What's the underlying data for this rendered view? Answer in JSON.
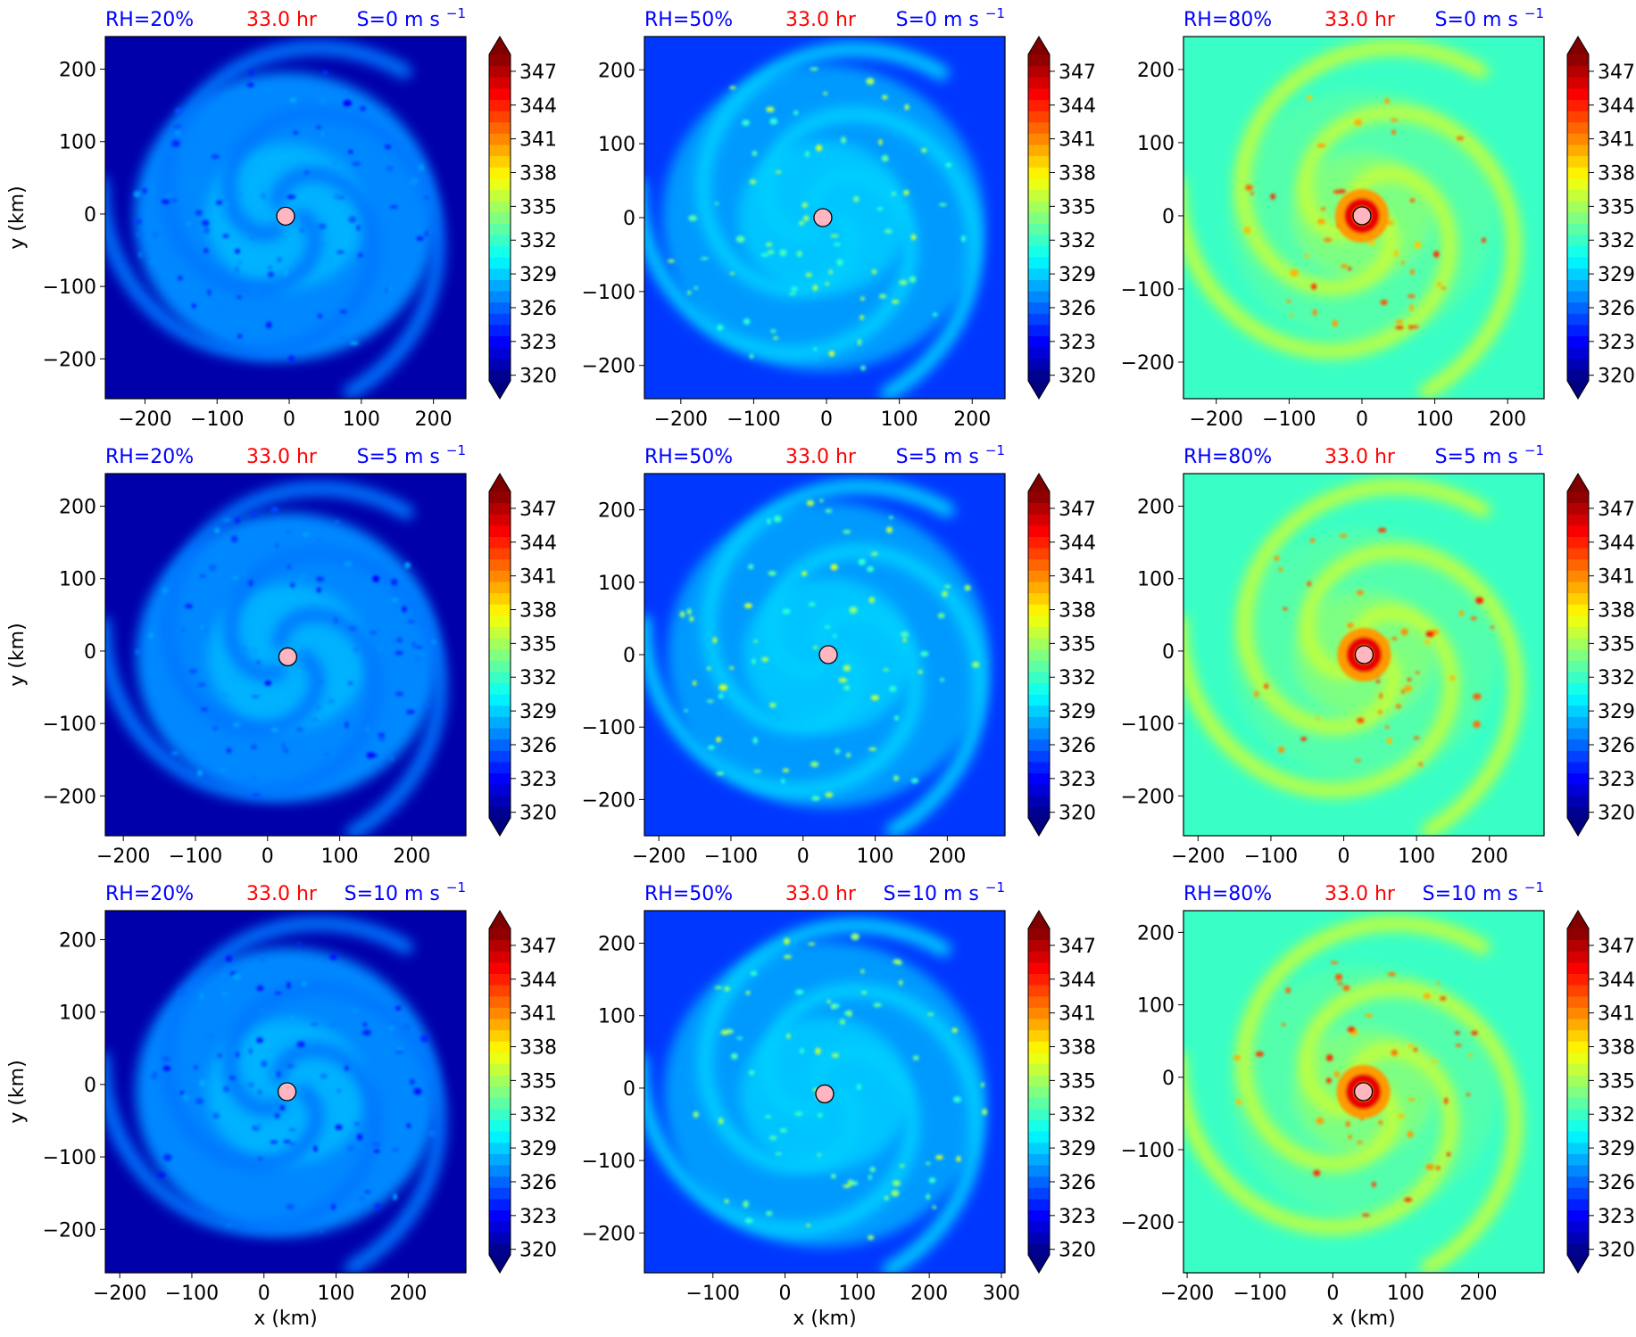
{
  "figure": {
    "colorbar_ticks": [
      "320",
      "323",
      "326",
      "329",
      "332",
      "335",
      "338",
      "341",
      "344",
      "347"
    ],
    "xlabel": "x (km)",
    "ylabel": "y (km)",
    "time_label": "33.0 hr",
    "colors": {
      "header_blue": "#0000ff",
      "header_red": "#ff0000",
      "center_marker": "#ffb6c1"
    }
  },
  "chart_data": [
    {
      "type": "heatmap",
      "rh_label": "RH=20%",
      "time_label": "33.0 hr",
      "shear_label": "S=0 m s",
      "shear_exp": "−1",
      "xlim": [
        -255,
        245
      ],
      "ylim": [
        -255,
        245
      ],
      "xticks": [
        "−200",
        "−100",
        "0",
        "100",
        "200"
      ],
      "yticks": [
        "200",
        "100",
        "0",
        "−100",
        "−200"
      ],
      "center": [
        -5,
        -3
      ],
      "regime": "dry",
      "colorbar": {
        "min": 320,
        "max": 349,
        "ticks": [
          320,
          323,
          326,
          329,
          332,
          335,
          338,
          341,
          344,
          347
        ]
      }
    },
    {
      "type": "heatmap",
      "rh_label": "RH=50%",
      "time_label": "33.0 hr",
      "shear_label": "S=0 m s",
      "shear_exp": "−1",
      "xlim": [
        -250,
        245
      ],
      "ylim": [
        -245,
        245
      ],
      "xticks": [
        "−200",
        "−100",
        "0",
        "100",
        "200"
      ],
      "yticks": [
        "200",
        "100",
        "0",
        "−100",
        "−200"
      ],
      "center": [
        -5,
        0
      ],
      "regime": "mid",
      "colorbar": {
        "min": 320,
        "max": 349,
        "ticks": [
          320,
          323,
          326,
          329,
          332,
          335,
          338,
          341,
          344,
          347
        ]
      }
    },
    {
      "type": "heatmap",
      "rh_label": "RH=80%",
      "time_label": "33.0 hr",
      "shear_label": "S=0 m s",
      "shear_exp": "−1",
      "xlim": [
        -245,
        250
      ],
      "ylim": [
        -250,
        245
      ],
      "xticks": [
        "−200",
        "−100",
        "0",
        "100",
        "200"
      ],
      "yticks": [
        "200",
        "100",
        "0",
        "−100",
        "−200"
      ],
      "center": [
        0,
        0
      ],
      "regime": "moist",
      "colorbar": {
        "min": 320,
        "max": 349,
        "ticks": [
          320,
          323,
          326,
          329,
          332,
          335,
          338,
          341,
          344,
          347
        ]
      }
    },
    {
      "type": "heatmap",
      "rh_label": "RH=20%",
      "time_label": "33.0 hr",
      "shear_label": "S=5 m s",
      "shear_exp": "−1",
      "xlim": [
        -225,
        275
      ],
      "ylim": [
        -255,
        245
      ],
      "xticks": [
        "−200",
        "−100",
        "0",
        "100",
        "200"
      ],
      "yticks": [
        "200",
        "100",
        "0",
        "−100",
        "−200"
      ],
      "center": [
        28,
        -8
      ],
      "regime": "dry",
      "colorbar": {
        "min": 320,
        "max": 349,
        "ticks": [
          320,
          323,
          326,
          329,
          332,
          335,
          338,
          341,
          344,
          347
        ]
      }
    },
    {
      "type": "heatmap",
      "rh_label": "RH=50%",
      "time_label": "33.0 hr",
      "shear_label": "S=5 m s",
      "shear_exp": "−1",
      "xlim": [
        -220,
        280
      ],
      "ylim": [
        -250,
        250
      ],
      "xticks": [
        "−200",
        "−100",
        "0",
        "100",
        "200"
      ],
      "yticks": [
        "200",
        "100",
        "0",
        "−100",
        "−200"
      ],
      "center": [
        35,
        0
      ],
      "regime": "mid",
      "colorbar": {
        "min": 320,
        "max": 349,
        "ticks": [
          320,
          323,
          326,
          329,
          332,
          335,
          338,
          341,
          344,
          347
        ]
      }
    },
    {
      "type": "heatmap",
      "rh_label": "RH=80%",
      "time_label": "33.0 hr",
      "shear_label": "S=5 m s",
      "shear_exp": "−1",
      "xlim": [
        -220,
        275
      ],
      "ylim": [
        -255,
        245
      ],
      "xticks": [
        "−200",
        "−100",
        "0",
        "100",
        "200"
      ],
      "yticks": [
        "200",
        "100",
        "0",
        "−100",
        "−200"
      ],
      "center": [
        28,
        -5
      ],
      "regime": "moist",
      "colorbar": {
        "min": 320,
        "max": 349,
        "ticks": [
          320,
          323,
          326,
          329,
          332,
          335,
          338,
          341,
          344,
          347
        ]
      }
    },
    {
      "type": "heatmap",
      "rh_label": "RH=20%",
      "time_label": "33.0 hr",
      "shear_label": "S=10 m s",
      "shear_exp": "−1",
      "xlim": [
        -220,
        280
      ],
      "ylim": [
        -260,
        240
      ],
      "xticks": [
        "−200",
        "−100",
        "0",
        "100",
        "200"
      ],
      "yticks": [
        "200",
        "100",
        "0",
        "−100",
        "−200"
      ],
      "center": [
        32,
        -10
      ],
      "regime": "dry",
      "colorbar": {
        "min": 320,
        "max": 349,
        "ticks": [
          320,
          323,
          326,
          329,
          332,
          335,
          338,
          341,
          344,
          347
        ]
      }
    },
    {
      "type": "heatmap",
      "rh_label": "RH=50%",
      "time_label": "33.0 hr",
      "shear_label": "S=10 m s",
      "shear_exp": "−1",
      "xlim": [
        -195,
        305
      ],
      "ylim": [
        -255,
        245
      ],
      "xticks": [
        "−100",
        "0",
        "100",
        "200",
        "300"
      ],
      "yticks": [
        "200",
        "100",
        "0",
        "−100",
        "−200"
      ],
      "center": [
        55,
        -8
      ],
      "regime": "mid",
      "colorbar": {
        "min": 320,
        "max": 349,
        "ticks": [
          320,
          323,
          326,
          329,
          332,
          335,
          338,
          341,
          344,
          347
        ]
      }
    },
    {
      "type": "heatmap",
      "rh_label": "RH=80%",
      "time_label": "33.0 hr",
      "shear_label": "S=10 m s",
      "shear_exp": "−1",
      "xlim": [
        -205,
        290
      ],
      "ylim": [
        -270,
        230
      ],
      "xticks": [
        "−200",
        "−100",
        "0",
        "100",
        "200"
      ],
      "yticks": [
        "200",
        "100",
        "0",
        "−100",
        "−200"
      ],
      "center": [
        42,
        -20
      ],
      "regime": "moist",
      "colorbar": {
        "min": 320,
        "max": 349,
        "ticks": [
          320,
          323,
          326,
          329,
          332,
          335,
          338,
          341,
          344,
          347
        ]
      }
    }
  ]
}
